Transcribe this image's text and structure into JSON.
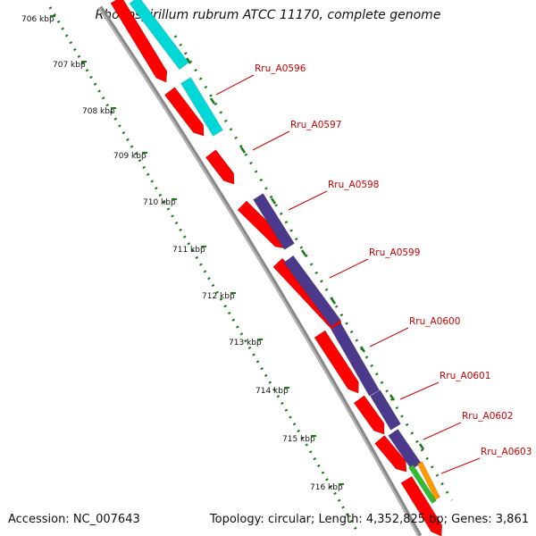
{
  "title": "Rhodospirillum rubrum ATCC 11170, complete genome",
  "footer": {
    "accession": "Accession: NC_007643",
    "summary": "Topology: circular; Length: 4,352,825 bp; Genes: 3,861"
  },
  "colors": {
    "red": "#ff0000",
    "cyan": "#00d8d8",
    "purple": "#4b3a8c",
    "green": "#33bb33",
    "orange": "#ff9900",
    "backbone": "#888888",
    "ruler": "#1a7a1a",
    "label": "#cc0000"
  },
  "kbp_labels": [
    "706 kbp",
    "707 kbp",
    "708 kbp",
    "709 kbp",
    "710 kbp",
    "711 kbp",
    "712 kbp",
    "713 kbp",
    "714 kbp",
    "715 kbp",
    "716 kbp"
  ],
  "gene_labels": [
    "Rru_A0596",
    "Rru_A0597",
    "Rru_A0598",
    "Rru_A0599",
    "Rru_A0600",
    "Rru_A0601",
    "Rru_A0602",
    "Rru_A0603"
  ]
}
